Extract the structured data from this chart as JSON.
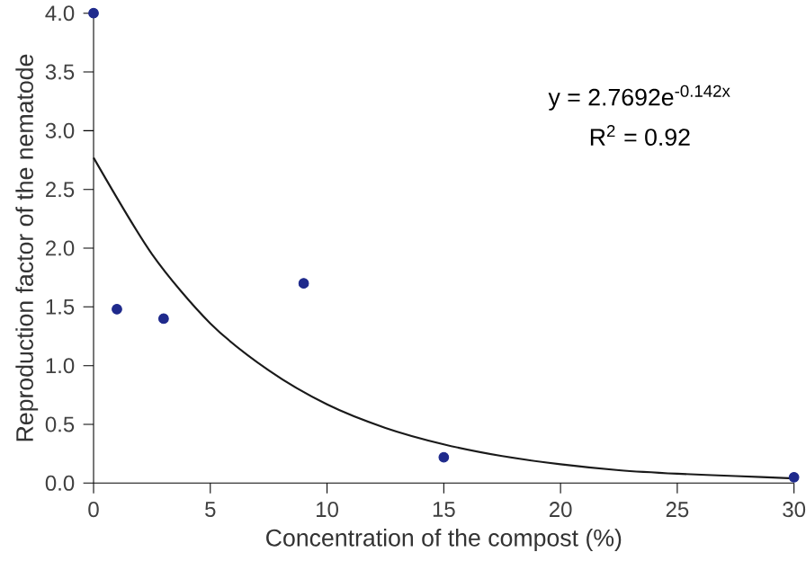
{
  "chart_data": {
    "type": "scatter",
    "xlabel": "Concentration of the compost (%)",
    "ylabel": "Reproduction factor of the nematode",
    "xlim": [
      0,
      30
    ],
    "ylim": [
      0,
      4
    ],
    "xticks": [
      0,
      5,
      10,
      15,
      20,
      25,
      30
    ],
    "yticks": [
      {
        "value": 0,
        "label": "0.0"
      },
      {
        "value": 0.5,
        "label": "0.5"
      },
      {
        "value": 1,
        "label": "1.0"
      },
      {
        "value": 1.5,
        "label": "1.5"
      },
      {
        "value": 2,
        "label": "2.0"
      },
      {
        "value": 2.5,
        "label": "2.5"
      },
      {
        "value": 3,
        "label": "3.0"
      },
      {
        "value": 3.5,
        "label": "3.5"
      },
      {
        "value": 4,
        "label": "4.0"
      }
    ],
    "grid": false,
    "series": [
      {
        "color": "#1f2a8c",
        "marker": "circle",
        "x": [
          0,
          1,
          3,
          9,
          15,
          30
        ],
        "values": [
          4.0,
          1.48,
          1.4,
          1.7,
          0.22,
          0.05
        ]
      },
      {
        "type": "line",
        "color": "#1a1a1a",
        "marker": "none",
        "line_style": "solid",
        "x": [
          0,
          2.5,
          5,
          7.5,
          10,
          12.5,
          15,
          17.5,
          20,
          22.5,
          25,
          27.5,
          30
        ],
        "values": [
          2.77,
          1.95,
          1.36,
          0.96,
          0.67,
          0.47,
          0.33,
          0.23,
          0.16,
          0.11,
          0.08,
          0.06,
          0.04
        ]
      }
    ],
    "annotations": [
      "y = 2.7692e$^{-0.142x}$",
      "R$^{2}$ = 0.92"
    ]
  }
}
